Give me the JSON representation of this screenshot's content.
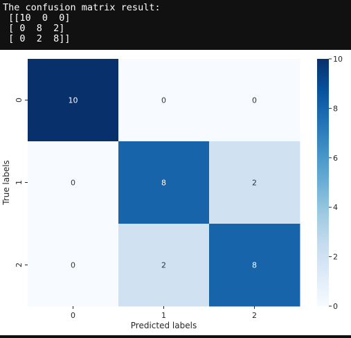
{
  "console": {
    "lines": [
      "The confusion matrix result:",
      " [[10  0  0]",
      " [ 0  8  2]",
      " [ 0  2  8]]"
    ]
  },
  "chart_data": {
    "type": "heatmap",
    "title": "",
    "xlabel": "Predicted labels",
    "ylabel": "True labels",
    "x_categories": [
      "0",
      "1",
      "2"
    ],
    "y_categories": [
      "0",
      "1",
      "2"
    ],
    "values": [
      [
        10,
        0,
        0
      ],
      [
        0,
        8,
        2
      ],
      [
        0,
        2,
        8
      ]
    ],
    "annotations": true,
    "colormap": "Blues",
    "colorbar": {
      "range": [
        0,
        10
      ],
      "ticks": [
        0,
        2,
        4,
        6,
        8,
        10
      ]
    },
    "grid": false,
    "colors": {
      "low": "#f7fbff",
      "high": "#08306b",
      "annotation_dark_bg": "#ffffff",
      "annotation_light_bg": "#333333"
    }
  }
}
